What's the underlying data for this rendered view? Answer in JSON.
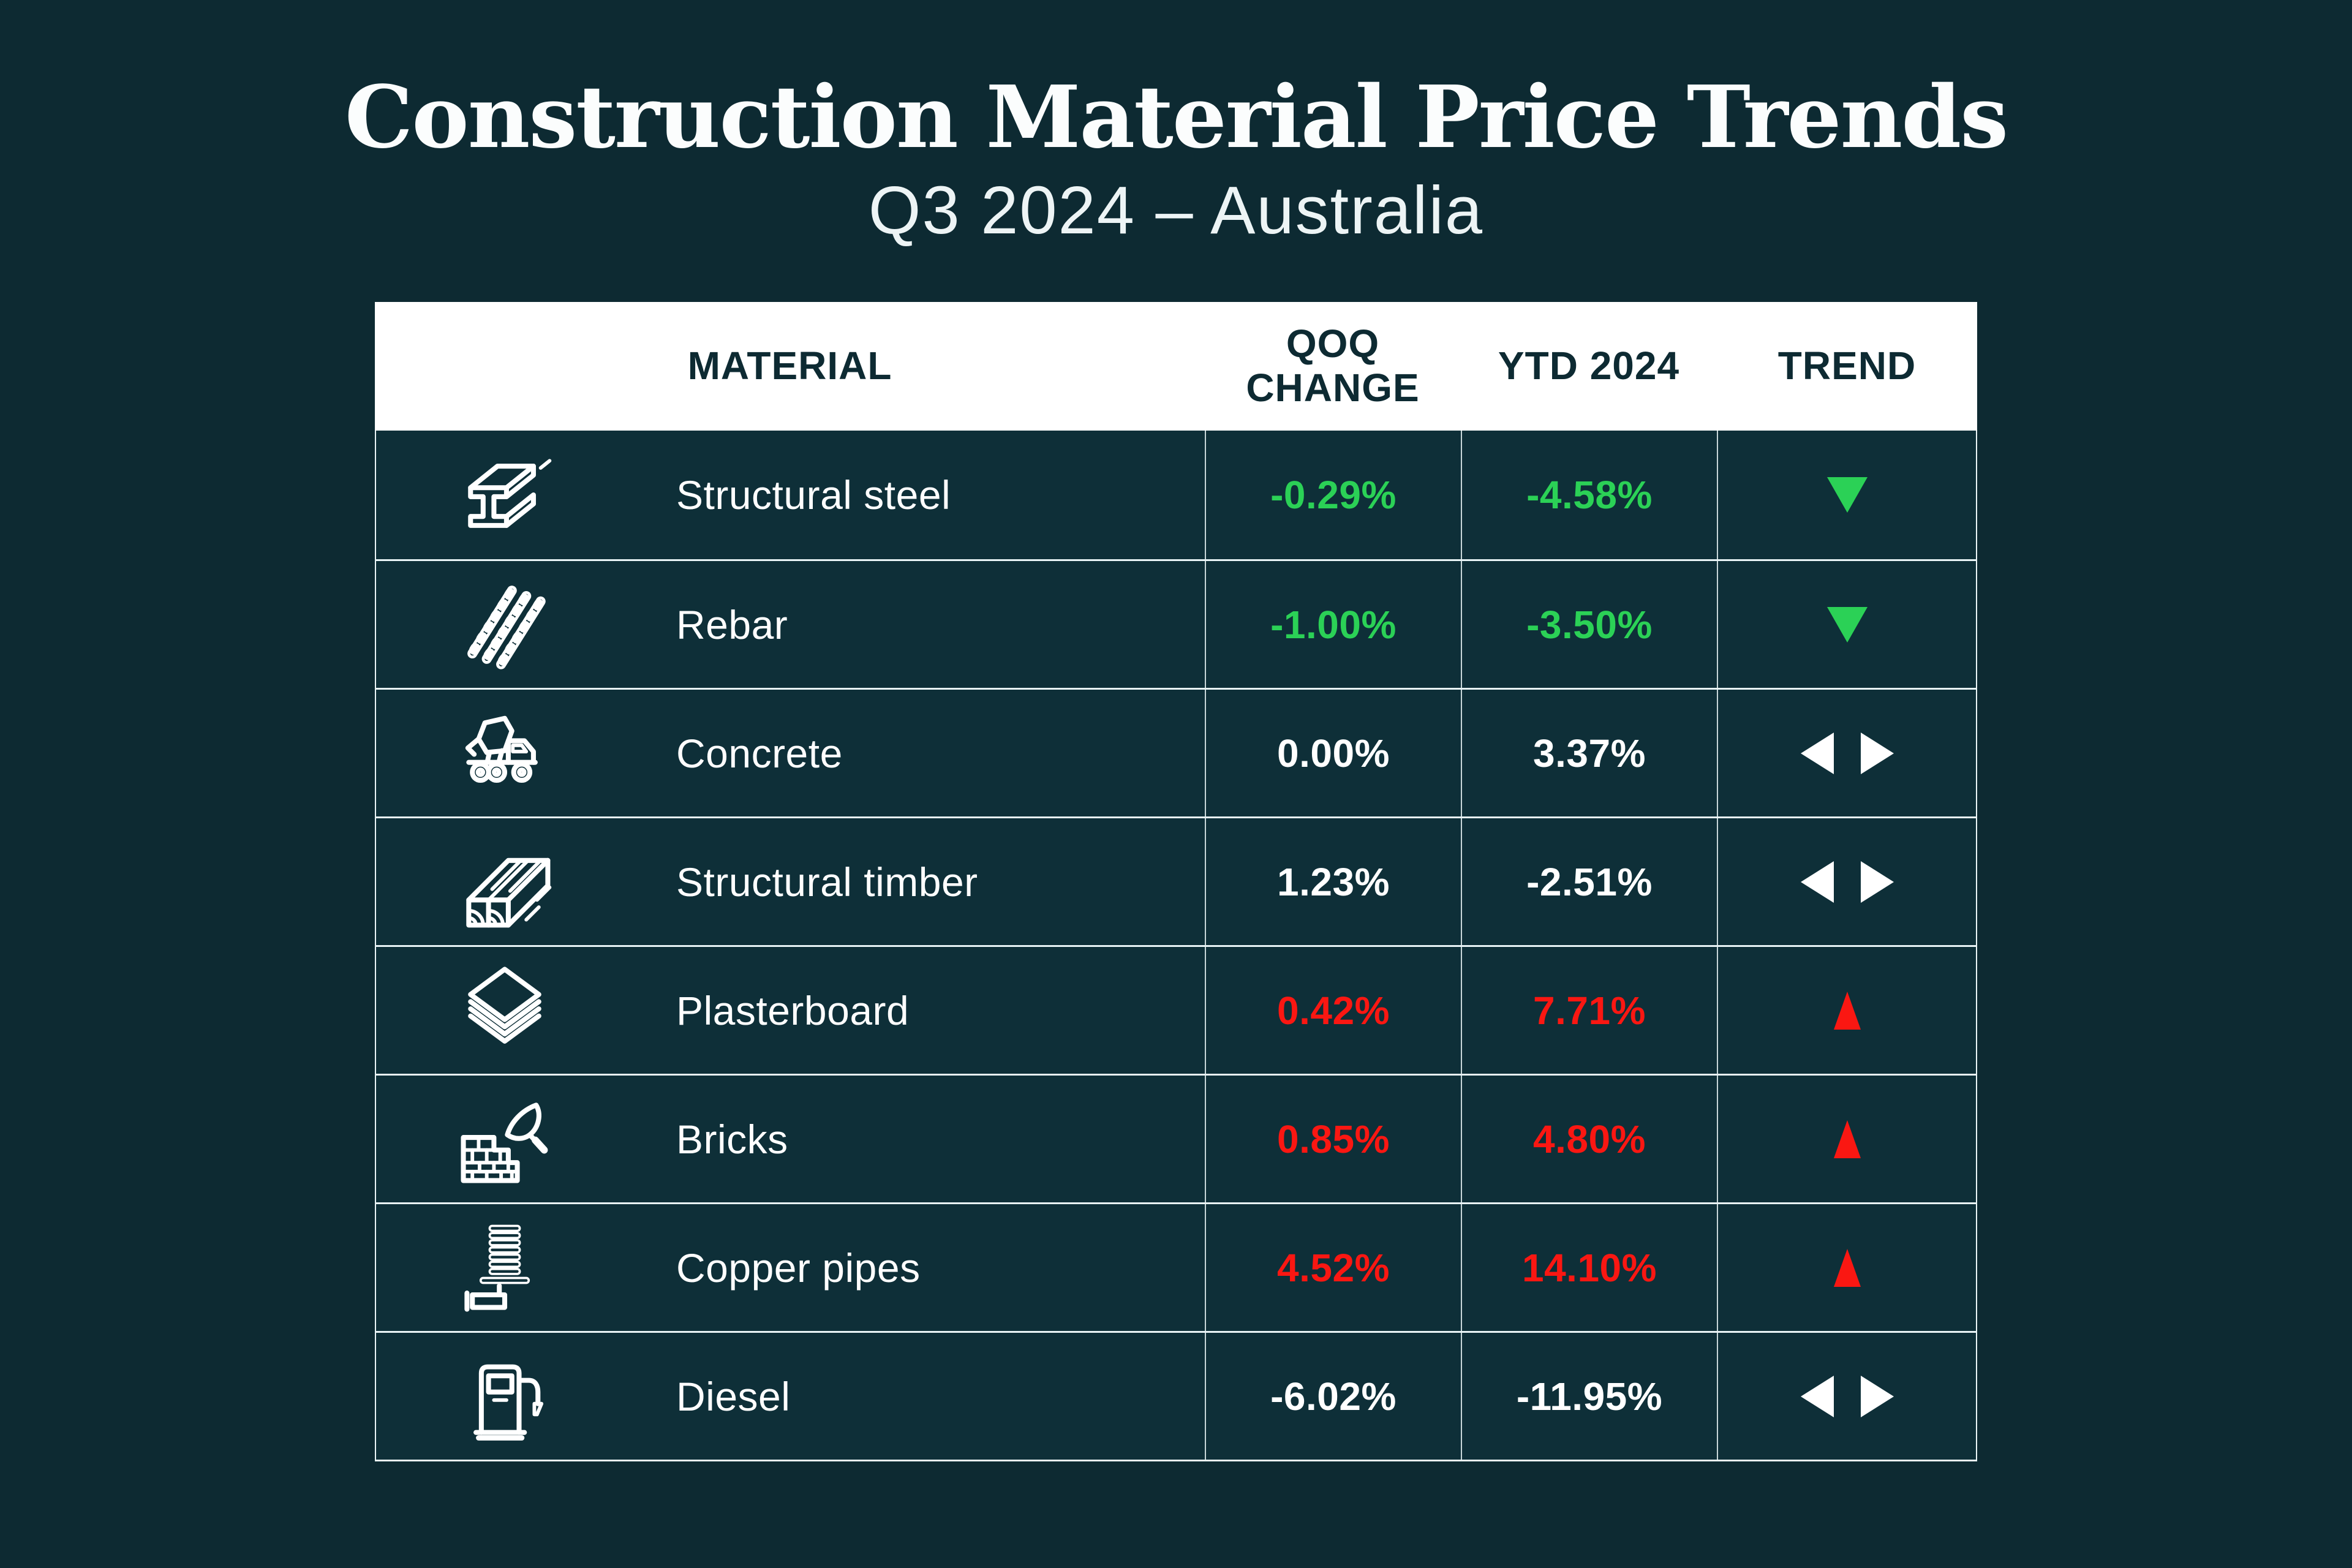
{
  "header": {
    "title": "Construction Material Price Trends",
    "subtitle": "Q3 2024 – Australia"
  },
  "table": {
    "columns": [
      "MATERIAL",
      "QOQ CHANGE",
      "YTD 2024",
      "TREND"
    ],
    "rows": [
      {
        "material": "Structural steel",
        "icon": "steel-beam-icon",
        "qoq_change": "-0.29%",
        "ytd_2024": "-4.58%",
        "trend_direction": "down",
        "trend_sentiment": "positive"
      },
      {
        "material": "Rebar",
        "icon": "rebar-icon",
        "qoq_change": "-1.00%",
        "ytd_2024": "-3.50%",
        "trend_direction": "down",
        "trend_sentiment": "positive"
      },
      {
        "material": "Concrete",
        "icon": "concrete-mixer-icon",
        "qoq_change": "0.00%",
        "ytd_2024": "3.37%",
        "trend_direction": "flat",
        "trend_sentiment": "neutral"
      },
      {
        "material": "Structural timber",
        "icon": "timber-icon",
        "qoq_change": "1.23%",
        "ytd_2024": "-2.51%",
        "trend_direction": "flat",
        "trend_sentiment": "neutral"
      },
      {
        "material": "Plasterboard",
        "icon": "plasterboard-icon",
        "qoq_change": "0.42%",
        "ytd_2024": "7.71%",
        "trend_direction": "up",
        "trend_sentiment": "negative"
      },
      {
        "material": "Bricks",
        "icon": "bricks-icon",
        "qoq_change": "0.85%",
        "ytd_2024": "4.80%",
        "trend_direction": "up",
        "trend_sentiment": "negative"
      },
      {
        "material": "Copper pipes",
        "icon": "copper-pipes-icon",
        "qoq_change": "4.52%",
        "ytd_2024": "14.10%",
        "trend_direction": "up",
        "trend_sentiment": "negative"
      },
      {
        "material": "Diesel",
        "icon": "fuel-pump-icon",
        "qoq_change": "-6.02%",
        "ytd_2024": "-11.95%",
        "trend_direction": "flat",
        "trend_sentiment": "neutral"
      }
    ]
  },
  "colors": {
    "background": "#0D2A32",
    "row_background": "#0E2F38",
    "header_background": "#FFFFFF",
    "header_text": "#0D2A32",
    "positive_green": "#2BD156",
    "negative_red": "#FA1712",
    "neutral_white": "#FFFFFF",
    "grid_line": "#E9F4F6"
  },
  "chart_data": {
    "type": "table",
    "title": "Construction Material Price Trends",
    "subtitle": "Q3 2024 – Australia",
    "columns": [
      "MATERIAL",
      "QOQ CHANGE",
      "YTD 2024",
      "TREND"
    ],
    "rows": [
      {
        "material": "Structural steel",
        "qoq_change_pct": -0.29,
        "ytd_2024_pct": -4.58,
        "trend": "down"
      },
      {
        "material": "Rebar",
        "qoq_change_pct": -1.0,
        "ytd_2024_pct": -3.5,
        "trend": "down"
      },
      {
        "material": "Concrete",
        "qoq_change_pct": 0.0,
        "ytd_2024_pct": 3.37,
        "trend": "flat"
      },
      {
        "material": "Structural timber",
        "qoq_change_pct": 1.23,
        "ytd_2024_pct": -2.51,
        "trend": "flat"
      },
      {
        "material": "Plasterboard",
        "qoq_change_pct": 0.42,
        "ytd_2024_pct": 7.71,
        "trend": "up"
      },
      {
        "material": "Bricks",
        "qoq_change_pct": 0.85,
        "ytd_2024_pct": 4.8,
        "trend": "up"
      },
      {
        "material": "Copper pipes",
        "qoq_change_pct": 4.52,
        "ytd_2024_pct": 14.1,
        "trend": "up"
      },
      {
        "material": "Diesel",
        "qoq_change_pct": -6.02,
        "ytd_2024_pct": -11.95,
        "trend": "flat"
      }
    ]
  }
}
